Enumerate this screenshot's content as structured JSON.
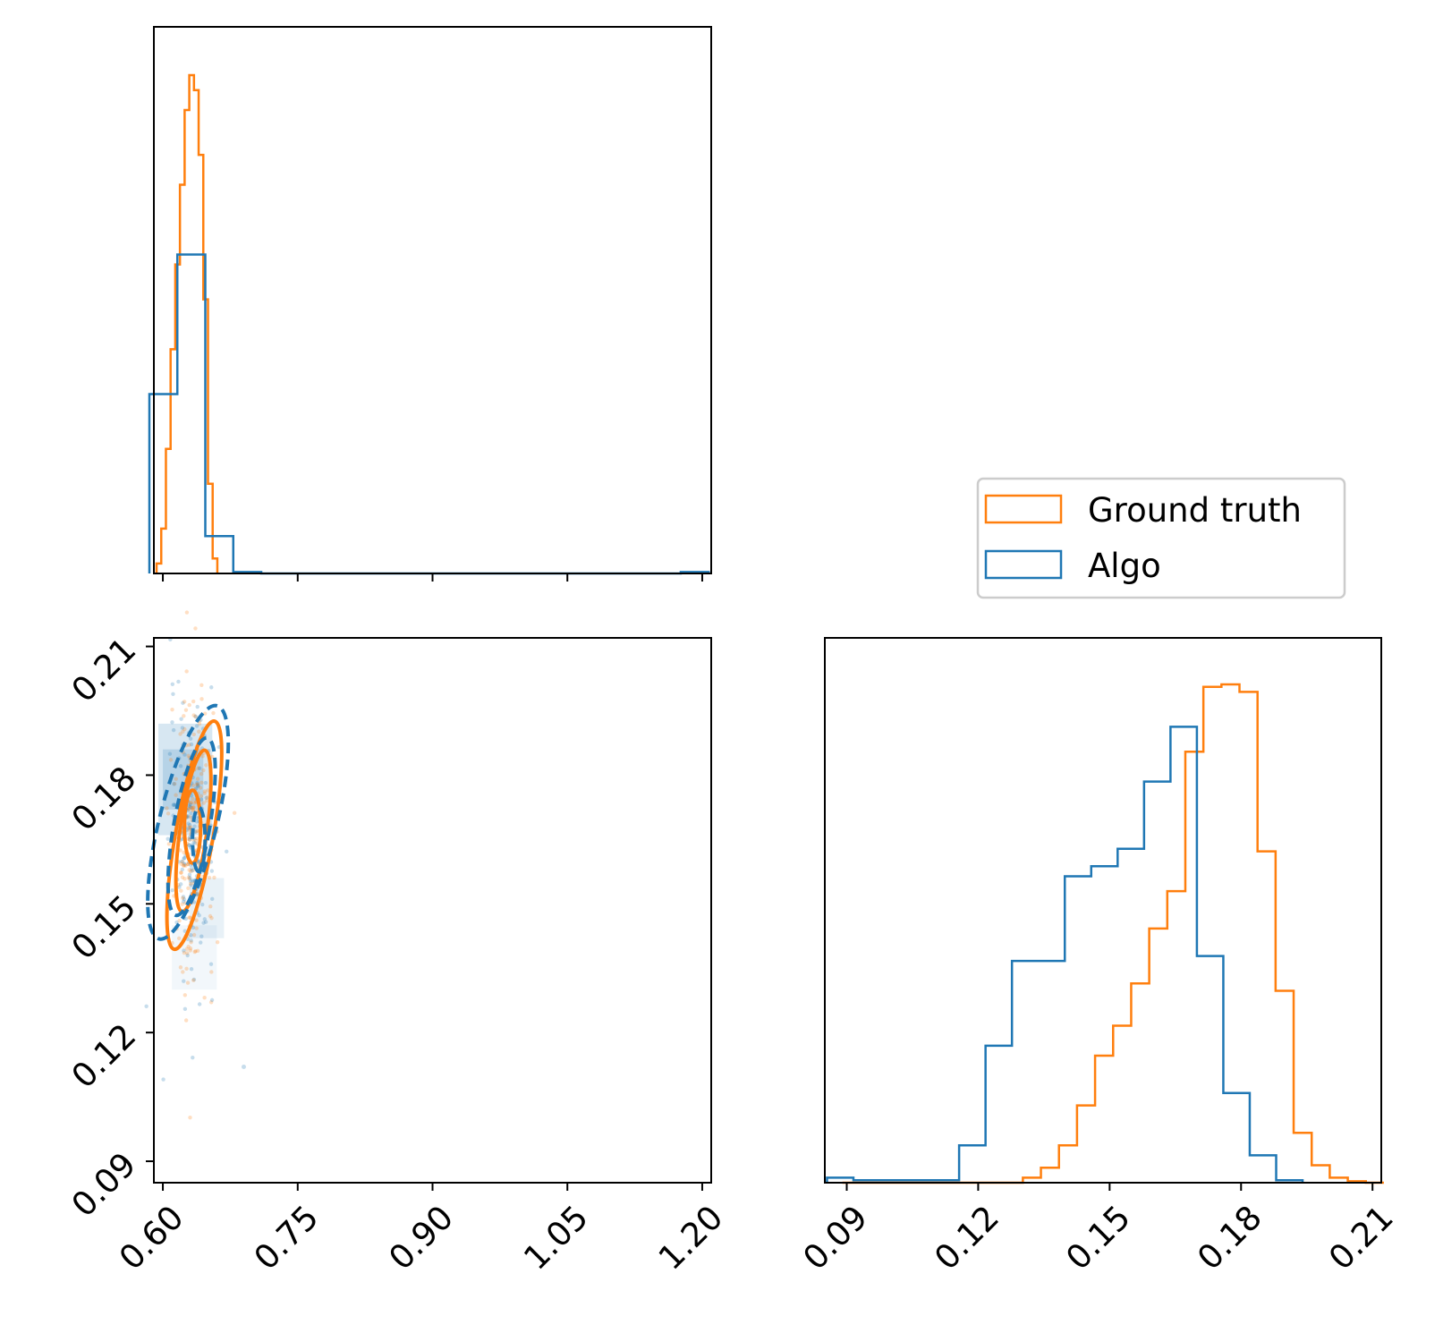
{
  "colors": {
    "ground_truth": "#ff7f0e",
    "algo": "#1f77b4",
    "axis": "#000000"
  },
  "legend": {
    "placement": "right of top-left panel",
    "entries": [
      "Ground truth",
      "Algo"
    ]
  },
  "chart_data": [
    {
      "panel": "top-left",
      "type": "histogram",
      "xlim": [
        0.59,
        1.21
      ],
      "xticks": [
        "0.60",
        "0.75",
        "0.90",
        "1.05",
        "1.20"
      ],
      "tick_labels_shown": false,
      "series": [
        {
          "name": "Ground truth",
          "bin_start": 0.593,
          "bin_width": 0.0052,
          "values": [
            0.02,
            0.09,
            0.25,
            0.45,
            0.62,
            0.78,
            0.93,
            1.0,
            0.97,
            0.84,
            0.55,
            0.18,
            0.03
          ]
        },
        {
          "name": "Algo",
          "bin_start": 0.585,
          "bin_width": 0.03111,
          "values": [
            0.36,
            0.64,
            0.075,
            0.003,
            0.0,
            0.0,
            0.0,
            0.0,
            0.0,
            0.0,
            0.0,
            0.0,
            0.0,
            0.0,
            0.0,
            0.0,
            0.0,
            0.0,
            0.0,
            0.003
          ]
        }
      ]
    },
    {
      "panel": "bottom-left",
      "type": "scatter",
      "xlim": [
        0.59,
        1.21
      ],
      "ylim": [
        0.085,
        0.212
      ],
      "xticks": [
        "0.60",
        "0.75",
        "0.90",
        "1.05",
        "1.20"
      ],
      "yticks": [
        "0.09",
        "0.12",
        "0.15",
        "0.18",
        "0.21"
      ],
      "contours": {
        "Ground truth": [
          {
            "cx": 0.633,
            "cy": 0.168,
            "rx": 0.009,
            "ry": 0.0085,
            "rot": 0
          },
          {
            "cx": 0.634,
            "cy": 0.167,
            "rx": 0.015,
            "ry": 0.019,
            "rot": 8
          },
          {
            "cx": 0.635,
            "cy": 0.166,
            "rx": 0.021,
            "ry": 0.027,
            "rot": 10
          }
        ],
        "Algo": [
          {
            "cx": 0.64,
            "cy": 0.165,
            "rx": 0.007,
            "ry": 0.0075,
            "rot": 0
          },
          {
            "cx": 0.632,
            "cy": 0.168,
            "rx": 0.02,
            "ry": 0.021,
            "rot": 10
          },
          {
            "cx": 0.628,
            "cy": 0.169,
            "rx": 0.032,
            "ry": 0.028,
            "rot": 14
          }
        ]
      },
      "points_seed": 7,
      "points_n": 450,
      "points_center": [
        0.633,
        0.165
      ],
      "points_spread": [
        0.012,
        0.016
      ],
      "outlier": [
        0.69,
        0.112
      ]
    },
    {
      "panel": "bottom-right",
      "type": "histogram",
      "xlim": [
        0.085,
        0.212
      ],
      "xticks": [
        "0.09",
        "0.12",
        "0.15",
        "0.18",
        "0.21"
      ],
      "series": [
        {
          "name": "Ground truth",
          "bin_start": 0.089,
          "bin_width": 0.00412,
          "values": [
            0.0,
            0.0,
            0.0,
            0.0,
            0.0,
            0.0,
            0.0,
            0.0,
            0.0,
            0.0,
            0.01,
            0.03,
            0.075,
            0.155,
            0.255,
            0.315,
            0.4,
            0.51,
            0.585,
            0.865,
            0.995,
            1.0,
            0.985,
            0.665,
            0.385,
            0.1,
            0.035,
            0.01,
            0.003,
            0.0
          ]
        },
        {
          "name": "Algo",
          "bin_start": 0.0855,
          "bin_width": 0.00603,
          "values": [
            0.01,
            0.005,
            0.005,
            0.005,
            0.005,
            0.075,
            0.275,
            0.445,
            0.445,
            0.615,
            0.635,
            0.67,
            0.805,
            0.915,
            0.455,
            0.18,
            0.055,
            0.005
          ]
        }
      ]
    }
  ]
}
